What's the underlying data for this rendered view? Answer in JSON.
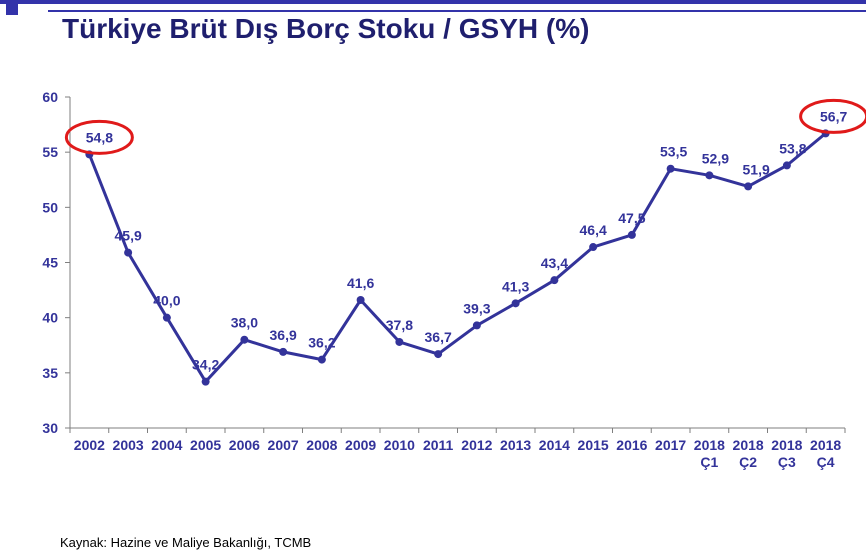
{
  "colors": {
    "accent": "#3333aa",
    "title": "#1f1f6e",
    "line": "#33339a",
    "highlight": "#e01a1a",
    "axis": "#7f7f7f"
  },
  "title": "Türkiye Brüt Dış Borç Stoku / GSYH (%)",
  "source": "Kaynak: Hazine ve Maliye Bakanlığı, TCMB",
  "chart_data": {
    "type": "line",
    "title": "Türkiye Brüt Dış Borç Stoku / GSYH (%)",
    "xlabel": "",
    "ylabel": "",
    "ylim": [
      30,
      60
    ],
    "yticks": [
      30,
      35,
      40,
      45,
      50,
      55,
      60
    ],
    "grid": false,
    "legend": "none",
    "categories": [
      "2002",
      "2003",
      "2004",
      "2005",
      "2006",
      "2007",
      "2008",
      "2009",
      "2010",
      "2011",
      "2012",
      "2013",
      "2014",
      "2015",
      "2016",
      "2017",
      "2018 Ç1",
      "2018 Ç2",
      "2018 Ç3",
      "2018 Ç4"
    ],
    "category_lines": [
      [
        "2002"
      ],
      [
        "2003"
      ],
      [
        "2004"
      ],
      [
        "2005"
      ],
      [
        "2006"
      ],
      [
        "2007"
      ],
      [
        "2008"
      ],
      [
        "2009"
      ],
      [
        "2010"
      ],
      [
        "2011"
      ],
      [
        "2012"
      ],
      [
        "2013"
      ],
      [
        "2014"
      ],
      [
        "2015"
      ],
      [
        "2016"
      ],
      [
        "2017"
      ],
      [
        "2018",
        "Ç1"
      ],
      [
        "2018",
        "Ç2"
      ],
      [
        "2018",
        "Ç3"
      ],
      [
        "2018",
        "Ç4"
      ]
    ],
    "values": [
      54.8,
      45.9,
      40.0,
      34.2,
      38.0,
      36.9,
      36.2,
      41.6,
      37.8,
      36.7,
      39.3,
      41.3,
      43.4,
      46.4,
      47.5,
      53.5,
      52.9,
      51.9,
      53.8,
      56.7
    ],
    "value_labels": [
      "54,8",
      "45,9",
      "40,0",
      "34,2",
      "38,0",
      "36,9",
      "36,2",
      "41,6",
      "37,8",
      "36,7",
      "39,3",
      "41,3",
      "43,4",
      "46,4",
      "47,5",
      "53,5",
      "52,9",
      "51,9",
      "53,8",
      "56,7"
    ],
    "highlighted": [
      "2002",
      "2018 Ç4"
    ]
  }
}
